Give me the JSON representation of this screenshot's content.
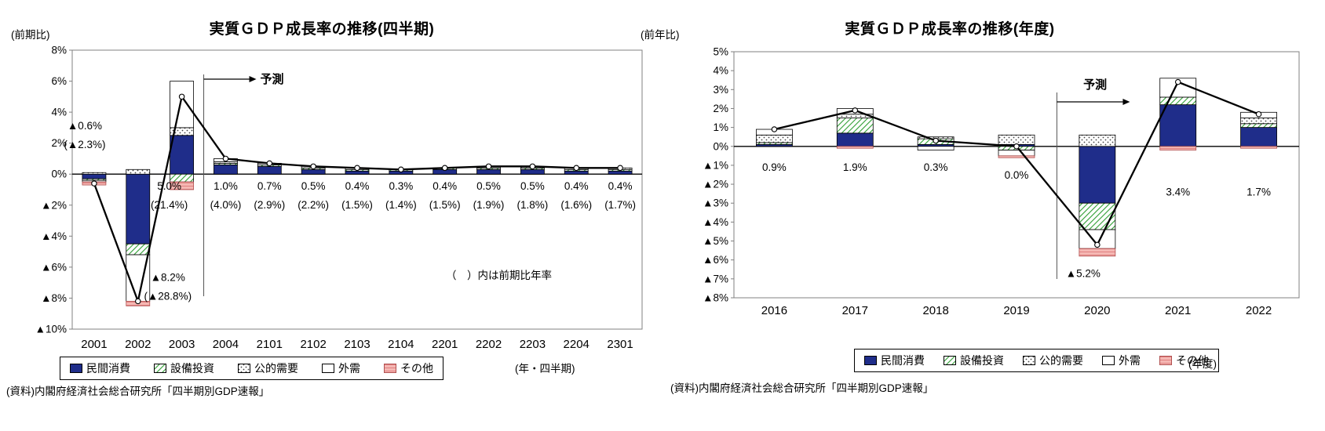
{
  "colors": {
    "navy": "#1F2D8A",
    "green": "#2F9E33",
    "dot": "#444444",
    "pink": "#F5B8B4",
    "pink_line": "#E08080",
    "pink_stroke": "#B05050",
    "frame": "#808080",
    "line": "#000000"
  },
  "chart_data": [
    {
      "id": "quarterly",
      "type": "bar",
      "combo": "stacked-bar-with-line",
      "title": "実質ＧＤＰ成長率の推移(四半期)",
      "y_unit_label": "(前期比)",
      "x_unit_label": "(年・四半期)",
      "source": "(資料)内閣府経済社会総合研究所「四半期別GDP速報」",
      "ylim": [
        -10,
        8
      ],
      "ytick_step": 2,
      "grid": false,
      "legend_position": "bottom",
      "categories": [
        "2001",
        "2002",
        "2003",
        "2004",
        "2101",
        "2102",
        "2103",
        "2104",
        "2201",
        "2202",
        "2203",
        "2204",
        "2301"
      ],
      "series": [
        {
          "name": "民間消費",
          "key": "private-consumption",
          "fill": "navy",
          "values": [
            -0.3,
            -4.5,
            2.5,
            0.6,
            0.5,
            0.3,
            0.2,
            0.2,
            0.3,
            0.3,
            0.3,
            0.2,
            0.2
          ]
        },
        {
          "name": "設備投資",
          "key": "capital-investment",
          "fill": "green_hatch",
          "values": [
            -0.1,
            -0.7,
            -0.5,
            0.1,
            0.1,
            0.1,
            0.1,
            0.1,
            0.1,
            0.1,
            0.1,
            0.1,
            0.1
          ]
        },
        {
          "name": "公的需要",
          "key": "public-demand",
          "fill": "dots",
          "values": [
            0.1,
            0.3,
            0.5,
            0.1,
            0.0,
            0.1,
            0.0,
            0.0,
            0.0,
            0.0,
            0.1,
            0.0,
            0.1
          ]
        },
        {
          "name": "外需",
          "key": "external-demand",
          "fill": "white",
          "values": [
            -0.1,
            -3.0,
            3.0,
            0.2,
            0.1,
            0.0,
            0.1,
            0.0,
            0.0,
            0.1,
            0.0,
            0.1,
            0.0
          ]
        },
        {
          "name": "その他",
          "key": "others",
          "fill": "pink_stripes",
          "values": [
            -0.2,
            -0.3,
            -0.5,
            0.0,
            0.0,
            0.0,
            0.0,
            0.0,
            0.0,
            0.0,
            0.0,
            0.0,
            0.0
          ]
        }
      ],
      "line": {
        "values": [
          -0.6,
          -8.2,
          5.0,
          1.0,
          0.7,
          0.5,
          0.4,
          0.3,
          0.4,
          0.5,
          0.5,
          0.4,
          0.4
        ]
      },
      "annotations": [
        {
          "i": 0,
          "dx": -12,
          "y": 2.9,
          "text": "▲0.6%",
          "sub": "(▲2.3%)"
        },
        {
          "i": 1,
          "dx": 38,
          "y": -6.9,
          "text": "▲8.2%",
          "sub": "(▲28.8%)"
        },
        {
          "i": 2,
          "dx": -16,
          "y": -1.0,
          "text": "5.0%",
          "sub": "(21.4%)"
        },
        {
          "i": 3,
          "y": -1.0,
          "text": "1.0%",
          "sub": "(4.0%)"
        },
        {
          "i": 4,
          "y": -1.0,
          "text": "0.7%",
          "sub": "(2.9%)"
        },
        {
          "i": 5,
          "y": -1.0,
          "text": "0.5%",
          "sub": "(2.2%)"
        },
        {
          "i": 6,
          "y": -1.0,
          "text": "0.4%",
          "sub": "(1.5%)"
        },
        {
          "i": 7,
          "y": -1.0,
          "text": "0.3%",
          "sub": "(1.4%)"
        },
        {
          "i": 8,
          "y": -1.0,
          "text": "0.4%",
          "sub": "(1.5%)"
        },
        {
          "i": 9,
          "y": -1.0,
          "text": "0.5%",
          "sub": "(1.9%)"
        },
        {
          "i": 10,
          "y": -1.0,
          "text": "0.5%",
          "sub": "(1.8%)"
        },
        {
          "i": 11,
          "y": -1.0,
          "text": "0.4%",
          "sub": "(1.6%)"
        },
        {
          "i": 12,
          "y": -1.0,
          "text": "0.4%",
          "sub": "(1.7%)"
        }
      ],
      "note": "（　）内は前期比年率",
      "forecast": {
        "label": "予測",
        "boundary_index": 3
      }
    },
    {
      "id": "annual",
      "type": "bar",
      "combo": "stacked-bar-with-line",
      "title": "実質ＧＤＰ成長率の推移(年度)",
      "y_unit_label": "(前年比)",
      "x_unit_label": "(年度)",
      "source": "(資料)内閣府経済社会総合研究所「四半期別GDP速報」",
      "ylim": [
        -8,
        5
      ],
      "ytick_step": 1,
      "grid": false,
      "legend_position": "bottom",
      "categories": [
        "2016",
        "2017",
        "2018",
        "2019",
        "2020",
        "2021",
        "2022"
      ],
      "series": [
        {
          "name": "民間消費",
          "key": "private-consumption",
          "fill": "navy",
          "values": [
            0.1,
            0.7,
            0.1,
            0.1,
            -3.0,
            2.2,
            1.0
          ]
        },
        {
          "name": "設備投資",
          "key": "capital-investment",
          "fill": "green_hatch",
          "values": [
            0.1,
            0.8,
            0.3,
            -0.2,
            -1.4,
            0.4,
            0.2
          ]
        },
        {
          "name": "公的需要",
          "key": "public-demand",
          "fill": "dots",
          "values": [
            0.4,
            0.2,
            0.1,
            0.5,
            0.6,
            0.0,
            0.3
          ]
        },
        {
          "name": "外需",
          "key": "external-demand",
          "fill": "white",
          "values": [
            0.3,
            0.3,
            -0.2,
            -0.3,
            -1.0,
            1.0,
            0.3
          ]
        },
        {
          "name": "その他",
          "key": "others",
          "fill": "pink_stripes",
          "values": [
            0.0,
            -0.1,
            0.0,
            -0.1,
            -0.4,
            -0.2,
            -0.1
          ]
        }
      ],
      "line": {
        "values": [
          0.9,
          1.9,
          0.3,
          0.0,
          -5.2,
          3.4,
          1.7
        ]
      },
      "annotations": [
        {
          "i": 0,
          "y": -1.3,
          "text": "0.9%"
        },
        {
          "i": 1,
          "y": -1.3,
          "text": "1.9%"
        },
        {
          "i": 2,
          "y": -1.3,
          "text": "0.3%"
        },
        {
          "i": 3,
          "y": -1.7,
          "text": "0.0%"
        },
        {
          "i": 4,
          "dx": -18,
          "y": -6.9,
          "text": "▲5.2%"
        },
        {
          "i": 5,
          "y": -2.6,
          "text": "3.4%"
        },
        {
          "i": 6,
          "y": -2.6,
          "text": "1.7%"
        }
      ],
      "forecast": {
        "label": "予測",
        "boundary_index": 4
      }
    }
  ]
}
